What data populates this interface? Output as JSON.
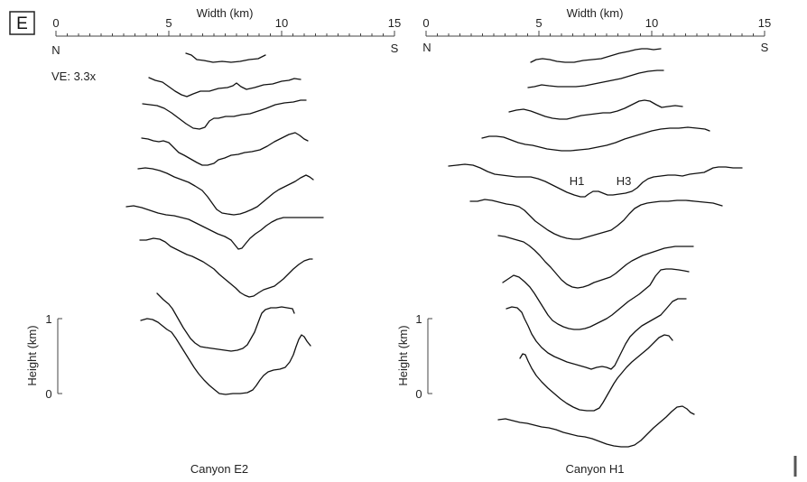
{
  "panel_label": "E",
  "left": {
    "axis_title": "Width (km)",
    "ticks": [
      "0",
      "5",
      "10",
      "15"
    ],
    "north": "N",
    "south": "S",
    "ve": "VE: 3.3x",
    "height_title": "Height (km)",
    "height_ticks": [
      "1",
      "0"
    ],
    "caption": "Canyon E2"
  },
  "right": {
    "axis_title": "Width (km)",
    "ticks": [
      "0",
      "5",
      "10",
      "15"
    ],
    "north": "N",
    "south": "S",
    "height_title": "Height (km)",
    "height_ticks": [
      "1",
      "0"
    ],
    "caption": "Canyon H1",
    "annotations": [
      "H1",
      "H3"
    ]
  }
}
